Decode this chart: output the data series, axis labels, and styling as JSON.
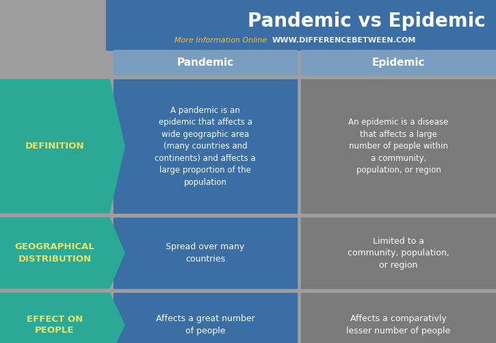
{
  "title": "Pandemic vs Epidemic",
  "subtitle_left": "More Information Online",
  "subtitle_right": "WWW.DIFFERENCEBETWEEN.COM",
  "bg_color": "#9e9e9e",
  "header_bg": "#3a6ea5",
  "col_header_bg": "#7a9ec0",
  "teal_color": "#2aaa96",
  "blue_cell_color": "#3a6ea5",
  "gray_cell_color": "#7a7a7a",
  "row_labels": [
    "DEFINITION",
    "GEOGRAPHICAL\nDISTRIBUTION",
    "EFFECT ON\nPEOPLE"
  ],
  "col_headers": [
    "Pandemic",
    "Epidemic"
  ],
  "pandemic_cells": [
    "A pandemic is an\nepidemic that affects a\nwide geographic area\n(many countries and\ncontinents) and affects a\nlarge proportion of the\npopulation",
    "Spread over many\ncountries",
    "Affects a great number\nof people"
  ],
  "epidemic_cells": [
    "An epidemic is a disease\nthat affects a large\nnumber of people within\na community,\npopulation, or region",
    "Limited to a\ncommunity, population,\nor region",
    "Affects a comparativly\nlesser number of people"
  ],
  "title_color": "#ffffff",
  "subtitle_left_color": "#f0c040",
  "subtitle_right_color": "#f0f0f0",
  "row_label_color": "#f0e060",
  "cell_text_color": "#ffffff",
  "header_text_color": "#ffffff"
}
